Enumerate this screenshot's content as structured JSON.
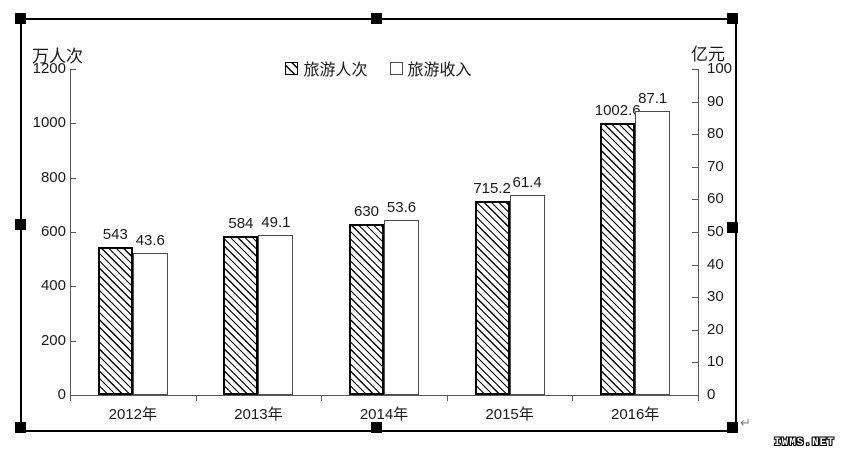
{
  "page": {
    "paragraph_mark": "↵",
    "watermark": "IWMS.NET"
  },
  "colors": {
    "background": "#ffffff",
    "frame_border": "#000000",
    "handle": "#000000",
    "axis": "#595959",
    "text": "#1a1a1a",
    "hatch": "#000000",
    "plain_bar_fill": "#ffffff"
  },
  "chart_data": {
    "type": "bar",
    "categories": [
      "2012年",
      "2013年",
      "2014年",
      "2015年",
      "2016年"
    ],
    "series": [
      {
        "name": "旅游人次",
        "axis": "left",
        "unit": "万人次",
        "pattern": "hatched",
        "values": [
          543,
          584,
          630,
          715.2,
          1002.6
        ],
        "labels": [
          "543",
          "584",
          "630",
          "715.2",
          "1002.6"
        ]
      },
      {
        "name": "旅游收入",
        "axis": "right",
        "unit": "亿元",
        "pattern": "plain",
        "values": [
          43.6,
          49.1,
          53.6,
          61.4,
          87.1
        ],
        "labels": [
          "43.6",
          "49.1",
          "53.6",
          "61.4",
          "87.1"
        ]
      }
    ],
    "left_axis": {
      "title": "万人次",
      "min": 0,
      "max": 1200,
      "ticks": [
        1200,
        1000,
        800,
        600,
        400,
        200,
        0
      ]
    },
    "right_axis": {
      "title": "亿元",
      "min": 0,
      "max": 100,
      "ticks": [
        100,
        90,
        80,
        70,
        60,
        50,
        40,
        30,
        20,
        10,
        0
      ]
    },
    "legend": {
      "position": "top-center",
      "entries": [
        "旅游人次",
        "旅游收入"
      ]
    },
    "grid": false
  }
}
